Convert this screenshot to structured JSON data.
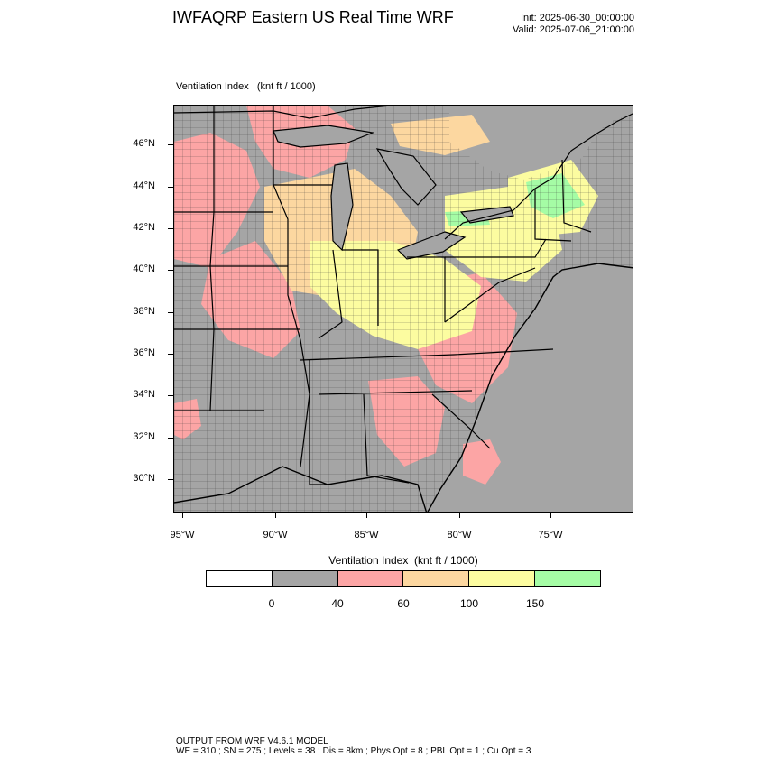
{
  "header": {
    "title": "IWFAQRP Eastern US Real Time WRF",
    "init": "Init: 2025-06-30_00:00:00",
    "valid": "Valid: 2025-07-06_21:00:00"
  },
  "map": {
    "field_label": "Ventilation Index   (knt ft / 1000)",
    "lat_labels": [
      "46°N",
      "44°N",
      "42°N",
      "40°N",
      "38°N",
      "36°N",
      "34°N",
      "32°N",
      "30°N"
    ],
    "lon_labels": [
      "95°W",
      "90°W",
      "85°W",
      "80°W",
      "75°W"
    ],
    "colors": {
      "land_gray": "#a5a5a5",
      "pink": "#fca5a5",
      "orange": "#fcd7a0",
      "yellow": "#fcfca0",
      "green": "#a5fca5",
      "water": "#a5a5a5"
    }
  },
  "legend": {
    "title": "Ventilation Index  (knt ft / 1000)",
    "colors": [
      "#ffffff",
      "#a5a5a5",
      "#fca5a5",
      "#fcd7a0",
      "#fcfca0",
      "#a5fca5"
    ],
    "values": [
      "0",
      "40",
      "60",
      "100",
      "150"
    ]
  },
  "footer": {
    "line1": "OUTPUT FROM WRF V4.6.1 MODEL",
    "line2": "WE = 310 ; SN = 275 ; Levels = 38 ; Dis = 8km ; Phys Opt = 8 ; PBL Opt = 1 ; Cu Opt = 3"
  }
}
